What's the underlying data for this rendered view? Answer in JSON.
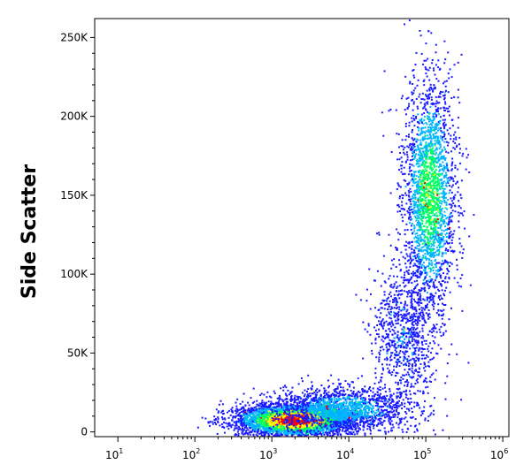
{
  "chart_data": {
    "type": "scatter",
    "subtype": "flow-cytometry-density",
    "title": "",
    "ylabel": "Side Scatter",
    "xlabel": "",
    "x_scale": "log",
    "x_range": [
      5,
      1200000
    ],
    "y_range": [
      -3000,
      262000
    ],
    "x_ticks": [
      {
        "value": 10,
        "base": "10",
        "exp": "1"
      },
      {
        "value": 100,
        "base": "10",
        "exp": "2"
      },
      {
        "value": 1000,
        "base": "10",
        "exp": "3"
      },
      {
        "value": 10000,
        "base": "10",
        "exp": "4"
      },
      {
        "value": 100000,
        "base": "10",
        "exp": "5"
      },
      {
        "value": 1000000,
        "base": "10",
        "exp": "6"
      }
    ],
    "y_ticks": [
      {
        "value": 0,
        "label": "0"
      },
      {
        "value": 50000,
        "label": "50K"
      },
      {
        "value": 100000,
        "label": "100K"
      },
      {
        "value": 150000,
        "label": "150K"
      },
      {
        "value": 200000,
        "label": "200K"
      },
      {
        "value": 250000,
        "label": "250K"
      }
    ],
    "populations": [
      {
        "x_center": 2000,
        "y_center": 8000,
        "x_spread_decades": 0.38,
        "y_spread": 5000,
        "relative_density": 1.0
      },
      {
        "x_center": 110000,
        "y_center": 150000,
        "x_spread_decades": 0.17,
        "y_spread": 38000,
        "relative_density": 0.55
      },
      {
        "x_center": 8000,
        "y_center": 15000,
        "x_spread_decades": 0.45,
        "y_spread": 7000,
        "relative_density": 0.35
      },
      {
        "x_center": 50000,
        "y_center": 60000,
        "x_spread_decades": 0.2,
        "y_spread": 25000,
        "relative_density": 0.2
      }
    ],
    "color_scale": [
      "#1a1aff",
      "#00b4ff",
      "#00ff66",
      "#ffff00",
      "#ff0000"
    ],
    "grid": false,
    "legend": "none"
  }
}
